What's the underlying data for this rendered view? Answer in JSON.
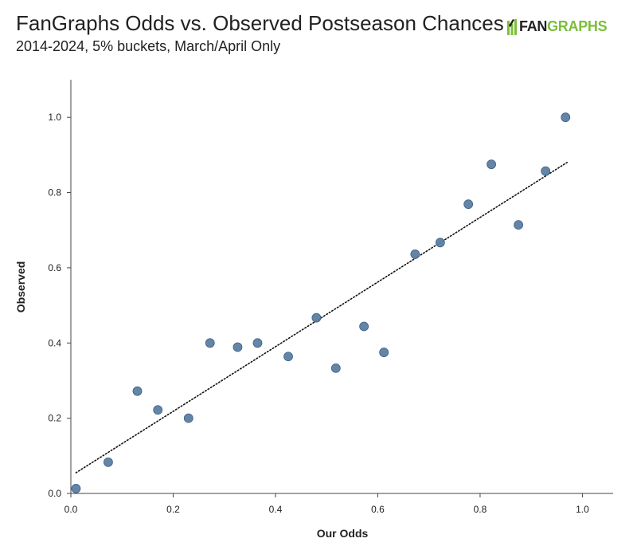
{
  "header": {
    "title": "FanGraphs Odds vs. Observed Postseason Chances",
    "subtitle": "2014-2024, 5% buckets, March/April Only",
    "logo_fan": "FAN",
    "logo_graphs": "GRAPHS"
  },
  "colors": {
    "point": "#5b7ea3",
    "point_stroke": "#3f5f85",
    "trend": "#111111",
    "axis": "#444444",
    "brand_green": "#7bbf3a"
  },
  "chart_data": {
    "type": "scatter",
    "title": "FanGraphs Odds vs. Observed Postseason Chances",
    "subtitle": "2014-2024, 5% buckets, March/April Only",
    "xlabel": "Our Odds",
    "ylabel": "Observed",
    "xlim": [
      0,
      1.06
    ],
    "ylim": [
      0,
      1.1
    ],
    "xticks": [
      "0.0",
      "0.2",
      "0.4",
      "0.6",
      "0.8",
      "1.0"
    ],
    "yticks": [
      "0.0",
      "0.2",
      "0.4",
      "0.6",
      "0.8",
      "1.0"
    ],
    "grid": false,
    "trendline": {
      "style": "dotted",
      "x": [
        0.01,
        0.97
      ],
      "y": [
        0.055,
        0.88
      ]
    },
    "points": [
      {
        "x": 0.01,
        "y": 0.013
      },
      {
        "x": 0.073,
        "y": 0.083
      },
      {
        "x": 0.13,
        "y": 0.272
      },
      {
        "x": 0.17,
        "y": 0.222
      },
      {
        "x": 0.23,
        "y": 0.2
      },
      {
        "x": 0.272,
        "y": 0.4
      },
      {
        "x": 0.326,
        "y": 0.389
      },
      {
        "x": 0.365,
        "y": 0.4
      },
      {
        "x": 0.425,
        "y": 0.364
      },
      {
        "x": 0.48,
        "y": 0.467
      },
      {
        "x": 0.518,
        "y": 0.333
      },
      {
        "x": 0.573,
        "y": 0.444
      },
      {
        "x": 0.612,
        "y": 0.375
      },
      {
        "x": 0.673,
        "y": 0.636
      },
      {
        "x": 0.722,
        "y": 0.667
      },
      {
        "x": 0.777,
        "y": 0.769
      },
      {
        "x": 0.822,
        "y": 0.875
      },
      {
        "x": 0.875,
        "y": 0.714
      },
      {
        "x": 0.928,
        "y": 0.857
      },
      {
        "x": 0.967,
        "y": 1.0
      }
    ]
  }
}
